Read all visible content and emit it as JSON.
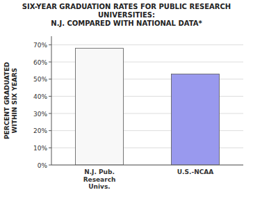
{
  "chart_data": {
    "type": "bar",
    "title": "SIX-YEAR GRADUATION RATES FOR PUBLIC RESEARCH\nUNIVERSITIES:\nN.J. COMPARED WITH NATIONAL DATA*",
    "categories": [
      "N.J. Pub.\nResearch\nUnivs.",
      "U.S.-NCAA"
    ],
    "values": [
      68,
      53
    ],
    "colors": [
      "#f8f8f8",
      "#9999ee"
    ],
    "ylabel": "PERCENT GRADUATED\nWITHIN SIX YEARS",
    "ylim": [
      0,
      75
    ],
    "yticks": [
      {
        "value": 0,
        "label": "0%"
      },
      {
        "value": 10,
        "label": "10%"
      },
      {
        "value": 20,
        "label": "20%"
      },
      {
        "value": 30,
        "label": "30%"
      },
      {
        "value": 40,
        "label": "40%"
      },
      {
        "value": 50,
        "label": "50%"
      },
      {
        "value": 60,
        "label": "60%"
      },
      {
        "value": 70,
        "label": "70%"
      }
    ],
    "grid": true
  }
}
